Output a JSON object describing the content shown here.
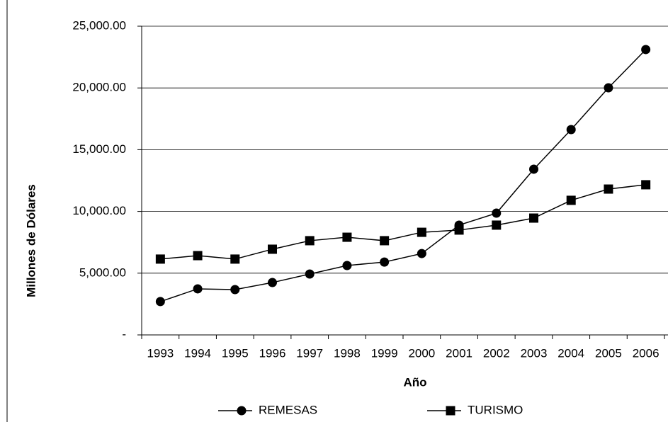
{
  "chart_data": {
    "type": "line",
    "x_label": "Año",
    "y_label": "Millones de Dólares",
    "categories": [
      "1993",
      "1994",
      "1995",
      "1996",
      "1997",
      "1998",
      "1999",
      "2000",
      "2001",
      "2002",
      "2003",
      "2004",
      "2005",
      "2006"
    ],
    "series": [
      {
        "name": "REMESAS",
        "color": "#000000",
        "marker": "circle",
        "values": [
          2700,
          3730,
          3670,
          4240,
          4930,
          5620,
          5900,
          6590,
          8890,
          9860,
          13420,
          16630,
          20010,
          23110
        ]
      },
      {
        "name": "TURISMO",
        "color": "#000000",
        "marker": "square",
        "values": [
          6140,
          6420,
          6140,
          6940,
          7630,
          7910,
          7630,
          8310,
          8490,
          8890,
          9460,
          10900,
          11810,
          12160
        ]
      }
    ],
    "ylim": [
      0,
      25000
    ],
    "yticks": [
      {
        "value": 0,
        "label": "-"
      },
      {
        "value": 5000,
        "label": "5,000.00"
      },
      {
        "value": 10000,
        "label": "10,000.00"
      },
      {
        "value": 15000,
        "label": "15,000.00"
      },
      {
        "value": 20000,
        "label": "20,000.00"
      },
      {
        "value": 25000,
        "label": "25,000.00"
      }
    ],
    "grid": true,
    "legend": "bottom"
  }
}
